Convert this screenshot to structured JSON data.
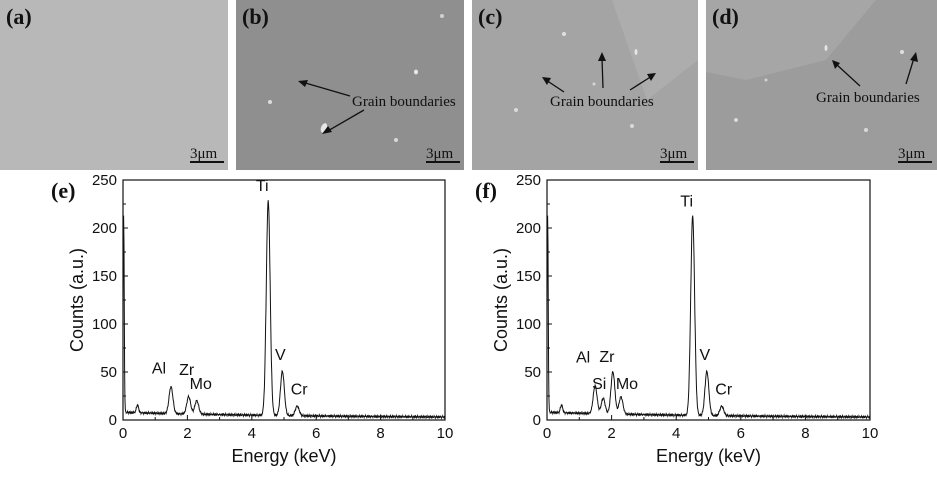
{
  "sem_panels": [
    {
      "label": "(a)",
      "scale_bar": "3μm",
      "annotation": "",
      "bg": "#b8b8b8"
    },
    {
      "label": "(b)",
      "scale_bar": "3μm",
      "annotation": "Grain boundaries",
      "bg": "#8f8f8f"
    },
    {
      "label": "(c)",
      "scale_bar": "3μm",
      "annotation": "Grain boundaries",
      "bg": "#a4a4a4"
    },
    {
      "label": "(d)",
      "scale_bar": "3μm",
      "annotation": "Grain boundaries",
      "bg": "#9c9c9c"
    }
  ],
  "chart_data": [
    {
      "type": "line",
      "panel_label": "(e)",
      "xlabel": "Energy (keV)",
      "ylabel": "Counts (a.u.)",
      "xlim": [
        0,
        10
      ],
      "ylim": [
        0,
        250
      ],
      "xticks": [
        0,
        2,
        4,
        6,
        8,
        10
      ],
      "yticks": [
        0,
        50,
        100,
        150,
        200,
        250
      ],
      "baseline": 6,
      "peaks": [
        {
          "label": "Al",
          "energy": 1.49,
          "counts": 34,
          "show_label": true
        },
        {
          "label": "Zr",
          "energy": 2.04,
          "counts": 24,
          "show_label": true
        },
        {
          "label": "Mo",
          "energy": 2.29,
          "counts": 20,
          "show_label": true
        },
        {
          "label": "Ti",
          "energy": 4.51,
          "counts": 230,
          "show_label": true
        },
        {
          "label": "V",
          "energy": 4.95,
          "counts": 52,
          "show_label": true
        },
        {
          "label": "Cr",
          "energy": 5.41,
          "counts": 16,
          "show_label": true
        }
      ],
      "peak_labels": [
        "Al",
        "Zr",
        "Mo",
        "Ti",
        "V",
        "Cr"
      ]
    },
    {
      "type": "line",
      "panel_label": "(f)",
      "xlabel": "Energy (keV)",
      "ylabel": "Counts (a.u.)",
      "xlim": [
        0,
        10
      ],
      "ylim": [
        0,
        250
      ],
      "xticks": [
        0,
        2,
        4,
        6,
        8,
        10
      ],
      "yticks": [
        0,
        50,
        100,
        150,
        200,
        250
      ],
      "baseline": 6,
      "peaks": [
        {
          "label": "Al",
          "energy": 1.49,
          "counts": 35,
          "show_label": true
        },
        {
          "label": "Si",
          "energy": 1.74,
          "counts": 22,
          "show_label": true
        },
        {
          "label": "Zr",
          "energy": 2.04,
          "counts": 50,
          "show_label": true
        },
        {
          "label": "Mo",
          "energy": 2.29,
          "counts": 24,
          "show_label": true
        },
        {
          "label": "Ti",
          "energy": 4.51,
          "counts": 214,
          "show_label": true
        },
        {
          "label": "V",
          "energy": 4.95,
          "counts": 52,
          "show_label": true
        },
        {
          "label": "Cr",
          "energy": 5.41,
          "counts": 16,
          "show_label": true
        }
      ],
      "peak_labels": [
        "Al",
        "Si",
        "Zr",
        "Mo",
        "Ti",
        "V",
        "Cr"
      ]
    }
  ],
  "colors": {
    "line": "#111111",
    "axis": "#111111"
  }
}
